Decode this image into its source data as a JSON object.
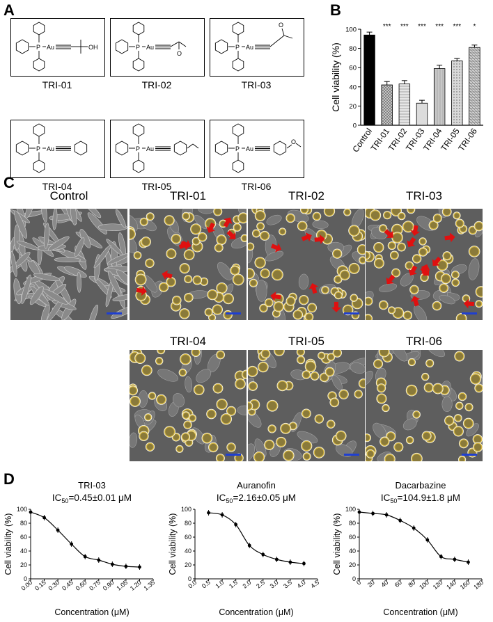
{
  "panels": {
    "a": "A",
    "b": "B",
    "c": "C",
    "d": "D"
  },
  "compounds": [
    {
      "label": "TRI-01",
      "tail": "OH"
    },
    {
      "label": "TRI-02",
      "tail": "O"
    },
    {
      "label": "TRI-03",
      "tail": "O"
    },
    {
      "label": "TRI-04",
      "tail": ""
    },
    {
      "label": "TRI-05",
      "tail": ""
    },
    {
      "label": "TRI-06",
      "tail": "O"
    }
  ],
  "chem": {
    "p": "P",
    "au": "Au"
  },
  "micro_titles": [
    "Control",
    "TRI-01",
    "TRI-02",
    "TRI-03",
    "TRI-04",
    "TRI-05",
    "TRI-06"
  ],
  "chart_data": [
    {
      "type": "bar",
      "ylabel": "Cell viability (%)",
      "categories": [
        "Control",
        "TRI-01",
        "TRI-02",
        "TRI-03",
        "TRI-04",
        "TRI-05",
        "TRI-06"
      ],
      "values": [
        94,
        42,
        43,
        23,
        59,
        67,
        81
      ],
      "errors": [
        3,
        3.5,
        3.5,
        3,
        3.5,
        2.5,
        2.5
      ],
      "significance": [
        "",
        "***",
        "***",
        "***",
        "***",
        "***",
        "*"
      ],
      "ylim": [
        0,
        100
      ],
      "yticks": [
        0,
        20,
        40,
        60,
        80,
        100
      ]
    },
    {
      "type": "scatter",
      "title": "TRI-03",
      "subtitle_prefix": "IC",
      "subtitle_sub": "50",
      "subtitle_value": "=0.45±0.01 μM",
      "xlabel": "Concentration (μM)",
      "ylabel": "Cell viability (%)",
      "x": [
        0.0,
        0.15,
        0.3,
        0.45,
        0.6,
        0.75,
        0.9,
        1.05,
        1.2
      ],
      "y": [
        96,
        88,
        70,
        50,
        32,
        27,
        21,
        18,
        17
      ],
      "ylim": [
        0,
        100
      ],
      "xlim": [
        0,
        1.35
      ],
      "xticks": [
        "0.00",
        "0.15",
        "0.30",
        "0.45",
        "0.60",
        "0.75",
        "0.90",
        "1.05",
        "1.20",
        "1.35"
      ],
      "yticks": [
        0,
        20,
        40,
        60,
        80,
        100
      ]
    },
    {
      "type": "scatter",
      "title": "Auranofin",
      "subtitle_prefix": "IC",
      "subtitle_sub": "50",
      "subtitle_value": "=2.16±0.05 μM",
      "xlabel": "Concentration (μM)",
      "ylabel": "Cell viability (%)",
      "x": [
        0.5,
        1.0,
        1.5,
        2.0,
        2.5,
        3.0,
        3.5,
        4.0
      ],
      "y": [
        95,
        92,
        78,
        48,
        35,
        28,
        24,
        22
      ],
      "ylim": [
        0,
        100
      ],
      "xlim": [
        0,
        4.5
      ],
      "xticks": [
        "0.0",
        "0.5",
        "1.0",
        "1.5",
        "2.0",
        "2.5",
        "3.0",
        "3.5",
        "4.0",
        "4.5"
      ],
      "yticks": [
        0,
        20,
        40,
        60,
        80,
        100
      ]
    },
    {
      "type": "scatter",
      "title": "Dacarbazine",
      "subtitle_prefix": "IC",
      "subtitle_sub": "50",
      "subtitle_value": "=104.9±1.8 μM",
      "xlabel": "Concentration (μM)",
      "ylabel": "Cell viability (%)",
      "x": [
        0,
        20,
        40,
        60,
        80,
        100,
        120,
        140,
        160
      ],
      "y": [
        96,
        94,
        92,
        84,
        73,
        56,
        32,
        28,
        24
      ],
      "ylim": [
        0,
        100
      ],
      "xlim": [
        0,
        180
      ],
      "xticks": [
        "0",
        "20",
        "40",
        "60",
        "80",
        "100",
        "120",
        "140",
        "160",
        "180"
      ],
      "yticks": [
        0,
        20,
        40,
        60,
        80,
        100
      ]
    }
  ]
}
